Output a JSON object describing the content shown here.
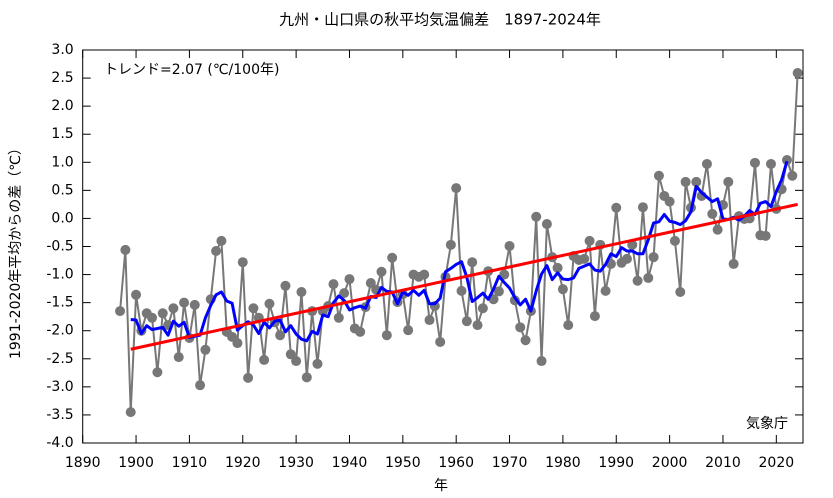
{
  "chart_data": {
    "type": "line",
    "title": "九州・山口県の秋平均気温偏差　1897-2024年",
    "annotation": "トレンド=2.07 (℃/100年)",
    "source": "気象庁",
    "x_label": "年",
    "y_label": "1991-2020年平均からの差（℃）",
    "x": [
      1897,
      1898,
      1899,
      1900,
      1901,
      1902,
      1903,
      1904,
      1905,
      1906,
      1907,
      1908,
      1909,
      1910,
      1911,
      1912,
      1913,
      1914,
      1915,
      1916,
      1917,
      1918,
      1919,
      1920,
      1921,
      1922,
      1923,
      1924,
      1925,
      1926,
      1927,
      1928,
      1929,
      1930,
      1931,
      1932,
      1933,
      1934,
      1935,
      1936,
      1937,
      1938,
      1939,
      1940,
      1941,
      1942,
      1943,
      1944,
      1945,
      1946,
      1947,
      1948,
      1949,
      1950,
      1951,
      1952,
      1953,
      1954,
      1955,
      1956,
      1957,
      1958,
      1959,
      1960,
      1961,
      1962,
      1963,
      1964,
      1965,
      1966,
      1967,
      1968,
      1969,
      1970,
      1971,
      1972,
      1973,
      1974,
      1975,
      1976,
      1977,
      1978,
      1979,
      1980,
      1981,
      1982,
      1983,
      1984,
      1985,
      1986,
      1987,
      1988,
      1989,
      1990,
      1991,
      1992,
      1993,
      1994,
      1995,
      1996,
      1997,
      1998,
      1999,
      2000,
      2001,
      2002,
      2003,
      2004,
      2005,
      2006,
      2007,
      2008,
      2009,
      2010,
      2011,
      2012,
      2013,
      2014,
      2015,
      2016,
      2017,
      2018,
      2019,
      2020,
      2021,
      2022,
      2023,
      2024
    ],
    "series": [
      {
        "color": "#777777",
        "markers": true,
        "values": [
          -1.65,
          -0.56,
          -3.45,
          -1.36,
          -2.0,
          -1.69,
          -1.77,
          -2.74,
          -1.69,
          -1.9,
          -1.6,
          -2.47,
          -1.5,
          -2.13,
          -1.54,
          -2.97,
          -2.34,
          -1.44,
          -0.58,
          -0.4,
          -2.02,
          -2.11,
          -2.22,
          -0.78,
          -2.84,
          -1.6,
          -1.77,
          -2.52,
          -1.52,
          -1.85,
          -2.08,
          -1.2,
          -2.42,
          -2.54,
          -1.31,
          -2.83,
          -1.65,
          -2.59,
          -1.65,
          -1.56,
          -1.17,
          -1.77,
          -1.33,
          -1.08,
          -1.96,
          -2.02,
          -1.58,
          -1.15,
          -1.27,
          -0.95,
          -2.08,
          -0.7,
          -1.49,
          -1.35,
          -1.99,
          -1.0,
          -1.04,
          -1.0,
          -1.81,
          -1.56,
          -2.2,
          -1.04,
          -0.47,
          0.54,
          -1.29,
          -1.83,
          -0.78,
          -1.9,
          -1.6,
          -0.94,
          -1.44,
          -1.3,
          -1.0,
          -0.49,
          -1.46,
          -1.94,
          -2.17,
          -1.65,
          0.03,
          -2.54,
          -0.1,
          -0.69,
          -0.88,
          -1.26,
          -1.9,
          -0.67,
          -0.74,
          -0.72,
          -0.4,
          -1.74,
          -0.47,
          -1.29,
          -0.81,
          0.19,
          -0.79,
          -0.72,
          -0.47,
          -1.11,
          0.2,
          -1.06,
          -0.69,
          0.76,
          0.4,
          0.3,
          -0.4,
          -1.31,
          0.65,
          0.19,
          0.65,
          0.4,
          0.97,
          0.08,
          -0.2,
          0.24,
          0.65,
          -0.81,
          0.04,
          -0.01,
          0.0,
          0.99,
          -0.3,
          -0.31,
          0.97,
          0.17,
          0.52,
          1.04,
          0.76,
          2.59
        ]
      },
      {
        "color": "#0000ff",
        "markers": false,
        "values": [
          null,
          null,
          -1.8,
          -1.81,
          -2.05,
          -1.91,
          -1.98,
          -1.96,
          -1.94,
          -2.08,
          -1.83,
          -1.92,
          -1.85,
          -2.12,
          -2.1,
          -2.08,
          -1.77,
          -1.55,
          -1.36,
          -1.31,
          -1.47,
          -1.51,
          -1.99,
          -1.91,
          -1.84,
          -1.9,
          -2.05,
          -1.85,
          -1.95,
          -1.83,
          -1.81,
          -2.02,
          -1.91,
          -2.06,
          -2.15,
          -2.18,
          -2.01,
          -2.06,
          -1.72,
          -1.75,
          -1.5,
          -1.38,
          -1.46,
          -1.63,
          -1.59,
          -1.56,
          -1.6,
          -1.39,
          -1.41,
          -1.23,
          -1.3,
          -1.31,
          -1.52,
          -1.31,
          -1.37,
          -1.28,
          -1.37,
          -1.28,
          -1.52,
          -1.52,
          -1.42,
          -0.95,
          -0.89,
          -0.82,
          -0.77,
          -1.05,
          -1.48,
          -1.41,
          -1.33,
          -1.44,
          -1.26,
          -1.03,
          -1.14,
          -1.24,
          -1.41,
          -1.54,
          -1.44,
          -1.65,
          -1.29,
          -0.99,
          -0.84,
          -1.09,
          -0.97,
          -1.08,
          -1.09,
          -1.06,
          -0.89,
          -0.85,
          -0.81,
          -0.92,
          -0.94,
          -0.82,
          -0.63,
          -0.68,
          -0.52,
          -0.58,
          -0.58,
          -0.63,
          -0.63,
          -0.38,
          -0.08,
          -0.06,
          0.07,
          -0.05,
          -0.07,
          -0.11,
          -0.04,
          0.12,
          0.57,
          0.46,
          0.38,
          0.3,
          0.35,
          -0.01,
          -0.02,
          0.02,
          -0.03,
          0.04,
          0.14,
          0.07,
          0.27,
          0.3,
          0.21,
          0.48,
          0.69,
          1.02,
          null,
          null
        ]
      },
      {
        "color": "#ff0000",
        "markers": false,
        "x": [
          1899,
          2024
        ],
        "values": [
          -2.33,
          0.25
        ]
      }
    ],
    "xlim": [
      1890,
      2025
    ],
    "ylim": [
      -4.0,
      3.0
    ],
    "xticks": [
      1890,
      1900,
      1910,
      1920,
      1930,
      1940,
      1950,
      1960,
      1970,
      1980,
      1990,
      2000,
      2010,
      2020
    ],
    "yticks": [
      {
        "value": -4.0,
        "label": "-4.0"
      },
      {
        "value": -3.5,
        "label": "-3.5"
      },
      {
        "value": -3.0,
        "label": "-3.0"
      },
      {
        "value": -2.5,
        "label": "-2.5"
      },
      {
        "value": -2.0,
        "label": "-2.0"
      },
      {
        "value": -1.5,
        "label": "-1.5"
      },
      {
        "value": -1.0,
        "label": "-1.0"
      },
      {
        "value": -0.5,
        "label": "-0.5"
      },
      {
        "value": 0.0,
        "label": "0.0"
      },
      {
        "value": 0.5,
        "label": "0.5"
      },
      {
        "value": 1.0,
        "label": "1.0"
      },
      {
        "value": 1.5,
        "label": "1.5"
      },
      {
        "value": 2.0,
        "label": "2.0"
      },
      {
        "value": 2.5,
        "label": "2.5"
      },
      {
        "value": 3.0,
        "label": "3.0"
      }
    ]
  }
}
